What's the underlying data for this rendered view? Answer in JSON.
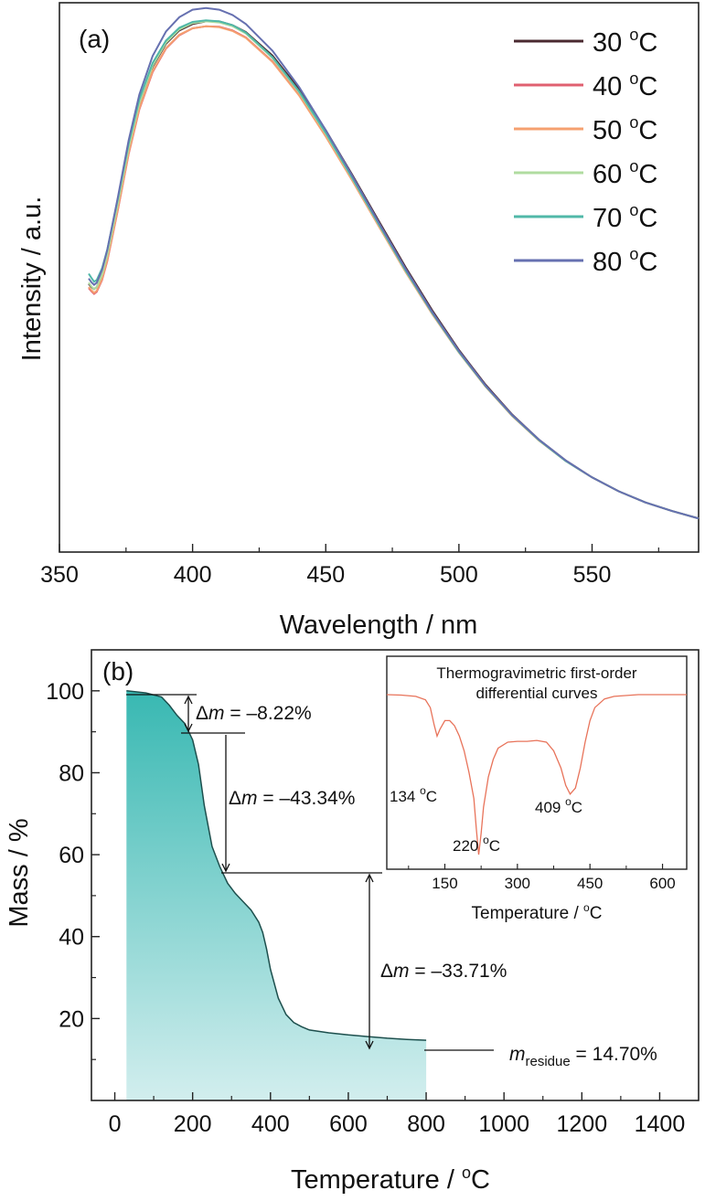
{
  "chart_data": [
    {
      "type": "line",
      "panel_label": "(a)",
      "xlabel": "Wavelength / nm",
      "ylabel": "Intensity / a.u.",
      "xlim": [
        350,
        590
      ],
      "ylim": [
        0,
        1.03
      ],
      "xticks": [
        350,
        400,
        450,
        500,
        550
      ],
      "yticks_shown": false,
      "legend_position": "top-right",
      "x": [
        361,
        362,
        363,
        364,
        366,
        368,
        372,
        376,
        380,
        385,
        390,
        395,
        400,
        405,
        410,
        415,
        420,
        430,
        440,
        450,
        460,
        470,
        480,
        490,
        500,
        510,
        520,
        530,
        540,
        550,
        560,
        570,
        580,
        590
      ],
      "series": [
        {
          "name": "30 °C",
          "color": "#4a2a30",
          "values": [
            0.503,
            0.497,
            0.493,
            0.497,
            0.52,
            0.556,
            0.653,
            0.756,
            0.84,
            0.91,
            0.953,
            0.978,
            0.99,
            0.995,
            0.995,
            0.988,
            0.975,
            0.931,
            0.868,
            0.791,
            0.707,
            0.62,
            0.534,
            0.453,
            0.379,
            0.314,
            0.258,
            0.211,
            0.172,
            0.14,
            0.114,
            0.093,
            0.077,
            0.063
          ]
        },
        {
          "name": "40 °C",
          "color": "#e06070",
          "values": [
            0.495,
            0.489,
            0.484,
            0.488,
            0.51,
            0.546,
            0.643,
            0.746,
            0.83,
            0.9,
            0.944,
            0.969,
            0.982,
            0.986,
            0.985,
            0.978,
            0.965,
            0.92,
            0.857,
            0.78,
            0.697,
            0.611,
            0.526,
            0.447,
            0.375,
            0.311,
            0.256,
            0.21,
            0.171,
            0.14,
            0.114,
            0.093,
            0.077,
            0.063
          ]
        },
        {
          "name": "50 °C",
          "color": "#f5a070",
          "values": [
            0.497,
            0.491,
            0.486,
            0.49,
            0.512,
            0.548,
            0.645,
            0.748,
            0.832,
            0.902,
            0.945,
            0.97,
            0.982,
            0.986,
            0.984,
            0.977,
            0.964,
            0.919,
            0.856,
            0.779,
            0.696,
            0.61,
            0.525,
            0.446,
            0.374,
            0.31,
            0.255,
            0.209,
            0.171,
            0.14,
            0.114,
            0.093,
            0.077,
            0.063
          ]
        },
        {
          "name": "60 °C",
          "color": "#b0dca0",
          "values": [
            0.505,
            0.498,
            0.493,
            0.497,
            0.52,
            0.557,
            0.655,
            0.758,
            0.842,
            0.912,
            0.955,
            0.98,
            0.992,
            0.995,
            0.993,
            0.986,
            0.972,
            0.926,
            0.862,
            0.784,
            0.7,
            0.613,
            0.527,
            0.448,
            0.375,
            0.311,
            0.256,
            0.21,
            0.171,
            0.14,
            0.114,
            0.093,
            0.077,
            0.063
          ]
        },
        {
          "name": "70 °C",
          "color": "#50b8a8",
          "values": [
            0.522,
            0.514,
            0.507,
            0.51,
            0.532,
            0.568,
            0.664,
            0.766,
            0.849,
            0.917,
            0.959,
            0.983,
            0.994,
            0.997,
            0.995,
            0.988,
            0.974,
            0.928,
            0.864,
            0.786,
            0.701,
            0.614,
            0.528,
            0.448,
            0.375,
            0.311,
            0.256,
            0.21,
            0.171,
            0.14,
            0.114,
            0.093,
            0.077,
            0.063
          ]
        },
        {
          "name": "80 °C",
          "color": "#6670b0",
          "values": [
            0.513,
            0.506,
            0.501,
            0.505,
            0.529,
            0.567,
            0.667,
            0.772,
            0.858,
            0.93,
            0.976,
            1.003,
            1.017,
            1.02,
            1.017,
            1.007,
            0.99,
            0.94,
            0.872,
            0.791,
            0.705,
            0.617,
            0.531,
            0.45,
            0.377,
            0.312,
            0.257,
            0.211,
            0.172,
            0.14,
            0.114,
            0.093,
            0.077,
            0.063
          ]
        }
      ]
    },
    {
      "type": "area",
      "panel_label": "(b)",
      "xlabel": "Temperature / °C",
      "ylabel": "Mass / %",
      "xlim": [
        -60,
        1500
      ],
      "ylim": [
        0,
        110
      ],
      "xticks": [
        0,
        200,
        400,
        600,
        800,
        1000,
        1200,
        1400
      ],
      "yticks": [
        20,
        40,
        60,
        80,
        100
      ],
      "x": [
        30,
        80,
        120,
        140,
        160,
        180,
        200,
        215,
        230,
        250,
        270,
        290,
        310,
        330,
        350,
        370,
        380,
        390,
        400,
        420,
        440,
        460,
        480,
        500,
        550,
        600,
        650,
        700,
        750,
        800
      ],
      "values": [
        100.0,
        99.5,
        98.5,
        96.5,
        94.0,
        92.0,
        88.0,
        82.0,
        72.0,
        62.0,
        57.0,
        53.0,
        50.5,
        48.5,
        46.5,
        43.5,
        41.0,
        37.0,
        32.0,
        25.0,
        21.0,
        19.0,
        18.0,
        17.2,
        16.5,
        16.0,
        15.6,
        15.2,
        14.9,
        14.7
      ],
      "annotations": [
        {
          "prefix": "Δ",
          "var": "m",
          "text": " = –8.22%"
        },
        {
          "prefix": "Δ",
          "var": "m",
          "text": " = –43.34%"
        },
        {
          "prefix": "Δ",
          "var": "m",
          "text": " = –33.71%"
        },
        {
          "var": "m",
          "sub": "residue",
          "text": " = 14.70%"
        }
      ],
      "inset": {
        "type": "line",
        "title_lines": [
          "Thermogravimetric first-order",
          "differential curves"
        ],
        "xlabel": "Temperature / °C",
        "xlim": [
          30,
          650
        ],
        "xticks": [
          150,
          300,
          450,
          600
        ],
        "color": "#e8735a",
        "peak_labels": [
          "134 °C",
          "220 °C",
          "409 °C"
        ],
        "x": [
          30,
          60,
          90,
          110,
          120,
          128,
          134,
          140,
          150,
          160,
          170,
          180,
          190,
          200,
          210,
          215,
          220,
          225,
          230,
          240,
          250,
          260,
          280,
          300,
          320,
          340,
          360,
          375,
          390,
          400,
          409,
          420,
          430,
          440,
          450,
          460,
          480,
          500,
          550,
          600,
          650
        ],
        "values": [
          0.0,
          -0.05,
          -0.2,
          -0.6,
          -1.5,
          -3.5,
          -4.8,
          -4.0,
          -3.0,
          -3.0,
          -3.6,
          -4.8,
          -6.5,
          -9.0,
          -12.0,
          -15.5,
          -18.5,
          -16.0,
          -13.0,
          -9.5,
          -7.5,
          -6.2,
          -5.5,
          -5.4,
          -5.4,
          -5.3,
          -5.5,
          -6.5,
          -8.5,
          -10.5,
          -11.5,
          -10.8,
          -8.5,
          -5.5,
          -3.0,
          -1.5,
          -0.5,
          -0.2,
          0.0,
          0.0,
          0.0
        ]
      }
    }
  ]
}
